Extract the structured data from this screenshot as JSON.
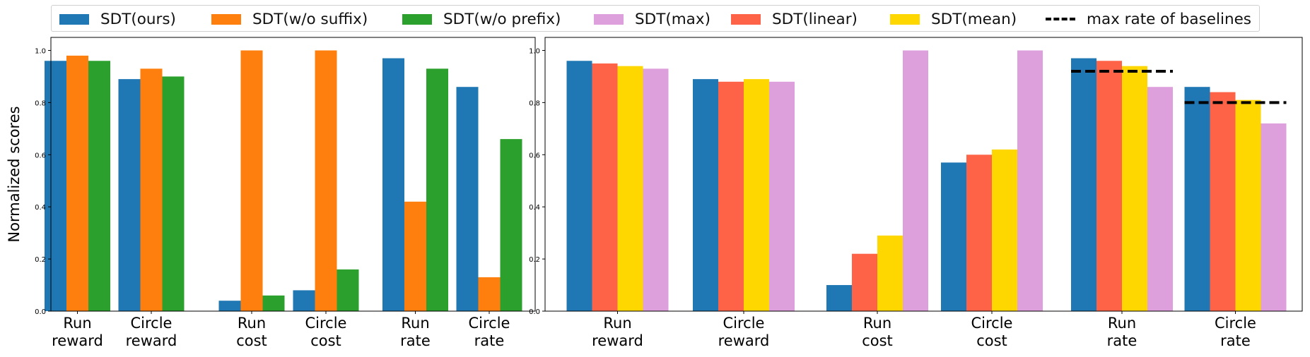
{
  "legend": {
    "placement": "top",
    "items": [
      {
        "label": "SDT(ours)",
        "color": "#1f77b4",
        "kind": "patch"
      },
      {
        "label": "SDT(w/o suffix)",
        "color": "#ff7f0e",
        "kind": "patch"
      },
      {
        "label": "SDT(w/o prefix)",
        "color": "#2ca02c",
        "kind": "patch"
      },
      {
        "label": "SDT(max)",
        "color": "#dda0dd",
        "kind": "patch"
      },
      {
        "label": "SDT(linear)",
        "color": "#ff6347",
        "kind": "patch"
      },
      {
        "label": "SDT(mean)",
        "color": "#ffd700",
        "kind": "patch"
      },
      {
        "label": "max rate of baselines",
        "color": "#000000",
        "kind": "dashed-line"
      }
    ]
  },
  "chart_data": [
    {
      "type": "bar",
      "ylabel": "Normalized scores",
      "xlabel": "",
      "ylim": [
        0,
        1.05
      ],
      "yticks": [
        "0.0",
        "0.2",
        "0.4",
        "0.6",
        "0.8",
        "1.0"
      ],
      "categories": [
        "Run\nreward",
        "Circle\nreward",
        "Run\ncost",
        "Circle\ncost",
        "Run\nrate",
        "Circle\nrate"
      ],
      "series": [
        {
          "name": "SDT(ours)",
          "color": "#1f77b4",
          "values": [
            0.96,
            0.89,
            0.04,
            0.08,
            0.97,
            0.86
          ]
        },
        {
          "name": "SDT(w/o suffix)",
          "color": "#ff7f0e",
          "values": [
            0.98,
            0.93,
            1.0,
            1.0,
            0.42,
            0.13
          ]
        },
        {
          "name": "SDT(w/o prefix)",
          "color": "#2ca02c",
          "values": [
            0.96,
            0.9,
            0.06,
            0.16,
            0.93,
            0.66
          ]
        }
      ]
    },
    {
      "type": "bar",
      "ylabel": "",
      "xlabel": "",
      "ylim": [
        0,
        1.05
      ],
      "yticks": [
        "0.0",
        "0.2",
        "0.4",
        "0.6",
        "0.8",
        "1.0"
      ],
      "categories": [
        "Run\nreward",
        "Circle\nreward",
        "Run\ncost",
        "Circle\ncost",
        "Run\nrate",
        "Circle\nrate"
      ],
      "series": [
        {
          "name": "SDT(ours)",
          "color": "#1f77b4",
          "values": [
            0.96,
            0.89,
            0.1,
            0.57,
            0.97,
            0.86
          ]
        },
        {
          "name": "SDT(linear)",
          "color": "#ff6347",
          "values": [
            0.95,
            0.88,
            0.22,
            0.6,
            0.96,
            0.84
          ]
        },
        {
          "name": "SDT(mean)",
          "color": "#ffd700",
          "values": [
            0.94,
            0.89,
            0.29,
            0.62,
            0.94,
            0.81
          ]
        },
        {
          "name": "SDT(max)",
          "color": "#dda0dd",
          "values": [
            0.93,
            0.88,
            1.0,
            1.0,
            0.86,
            0.72
          ]
        }
      ],
      "reference_lines": [
        {
          "name": "max rate of baselines",
          "category": "Run\nrate",
          "value": 0.92
        },
        {
          "name": "max rate of baselines",
          "category": "Circle\nrate",
          "value": 0.8
        }
      ]
    }
  ]
}
